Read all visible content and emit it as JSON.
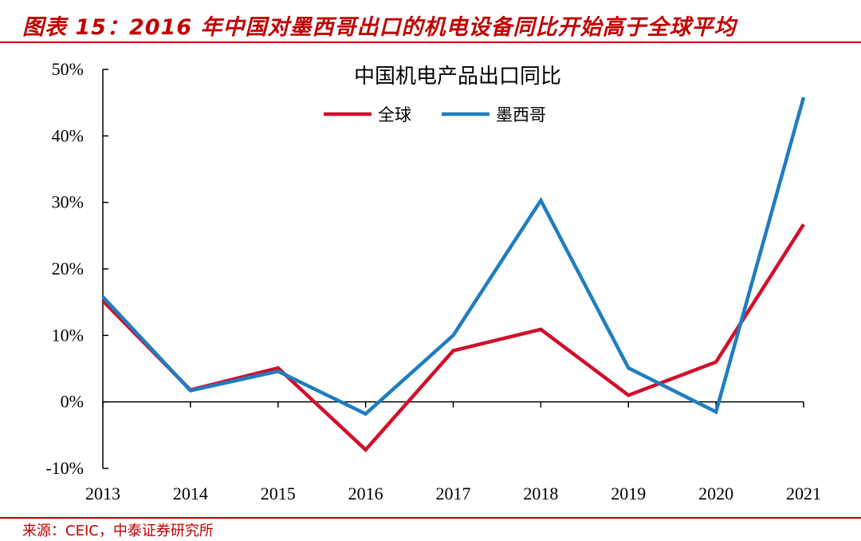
{
  "figure": {
    "title": "图表 15：2016 年中国对墨西哥出口的机电设备同比开始高于全球平均",
    "source": "来源：CEIC，中泰证券研究所"
  },
  "colors": {
    "accent": "#c00000",
    "global": "#d0102a",
    "mexico": "#1f7dc0"
  },
  "chart_data": {
    "type": "line",
    "title": "中国机电产品出口同比",
    "xlabel": "",
    "ylabel": "",
    "categories": [
      "2013",
      "2014",
      "2015",
      "2016",
      "2017",
      "2018",
      "2019",
      "2020",
      "2021"
    ],
    "yticks": [
      -10,
      0,
      10,
      20,
      30,
      40,
      50
    ],
    "ytick_labels": [
      "-10%",
      "0%",
      "10%",
      "20%",
      "30%",
      "40%",
      "50%"
    ],
    "ylim": [
      -10,
      50
    ],
    "legend_position": "top-center",
    "grid": false,
    "series": [
      {
        "name": "全球",
        "color": "#d0102a",
        "values": [
          15.2,
          1.8,
          5.1,
          -7.2,
          7.7,
          10.9,
          1.0,
          6.0,
          26.7
        ]
      },
      {
        "name": "墨西哥",
        "color": "#1f7dc0",
        "values": [
          15.8,
          1.7,
          4.6,
          -1.8,
          10.0,
          30.3,
          5.1,
          -1.5,
          45.8
        ]
      }
    ]
  }
}
